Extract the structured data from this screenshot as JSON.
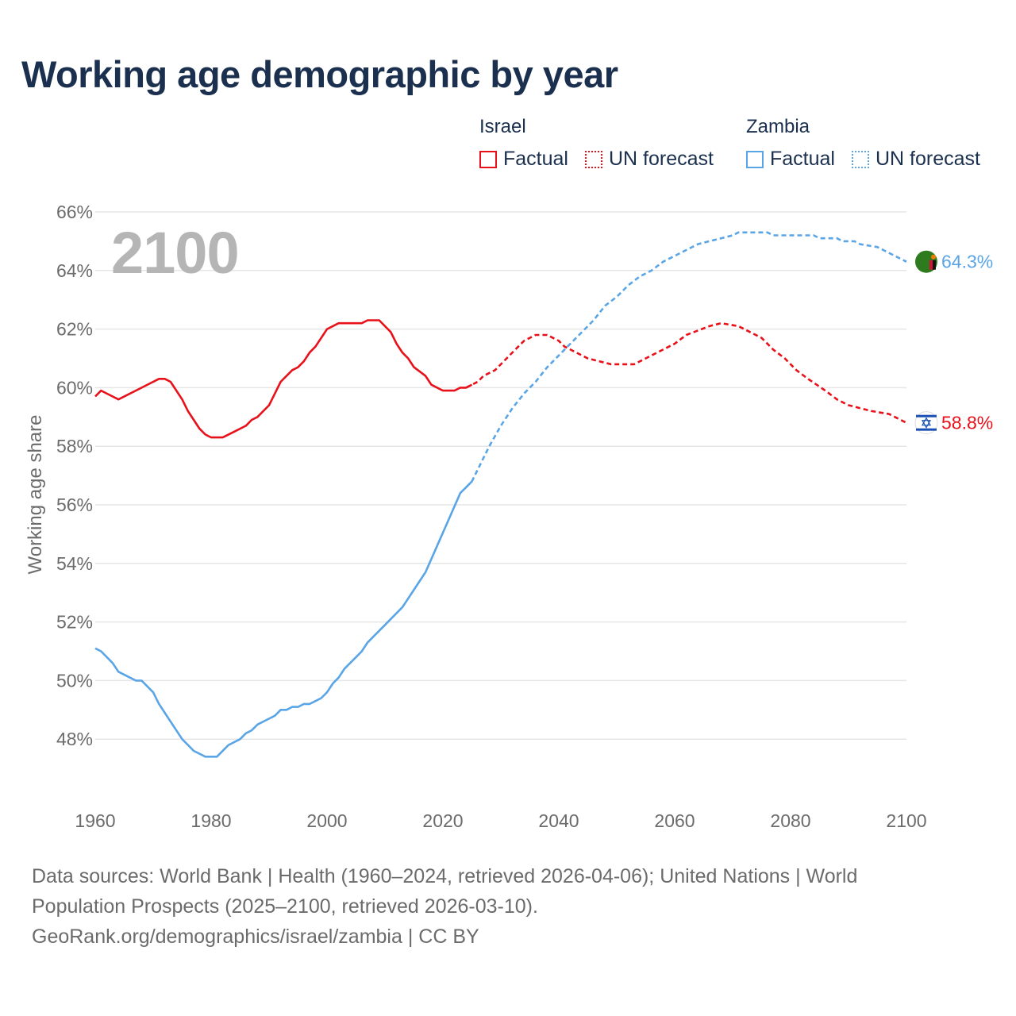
{
  "title": "Working age demographic by year",
  "big_year": "2100",
  "legend": {
    "groups": [
      {
        "name": "Israel",
        "factual": "Factual",
        "forecast": "UN forecast",
        "color": "#e8111a"
      },
      {
        "name": "Zambia",
        "factual": "Factual",
        "forecast": "UN forecast",
        "color": "#5aa5e6"
      }
    ]
  },
  "end_labels": {
    "israel": "58.8%",
    "zambia": "64.3%"
  },
  "flags": {
    "israel": "israel-flag-icon",
    "zambia": "zambia-flag-icon"
  },
  "sources": {
    "line1": "Data sources: World Bank | Health (1960–2024, retrieved 2026-04-06); United Nations | World",
    "line2": "Population Prospects (2025–2100, retrieved 2026-03-10).",
    "line3": "GeoRank.org/demographics/israel/zambia | CC BY"
  },
  "chart_data": {
    "type": "line",
    "title": "Working age demographic by year",
    "xlabel": "",
    "ylabel": "Working age share",
    "xlim": [
      1960,
      2100
    ],
    "ylim": [
      46,
      66
    ],
    "x_ticks": [
      1960,
      1980,
      2000,
      2020,
      2040,
      2060,
      2080,
      2100
    ],
    "y_ticks": [
      48,
      50,
      52,
      54,
      56,
      58,
      60,
      62,
      64,
      66
    ],
    "y_tick_labels": [
      "48%",
      "50%",
      "52%",
      "54%",
      "56%",
      "58%",
      "60%",
      "62%",
      "64%",
      "66%"
    ],
    "grid": true,
    "forecast_start": 2025,
    "series": [
      {
        "name": "Israel",
        "color": "#e8111a",
        "points": [
          [
            1960,
            59.7
          ],
          [
            1961,
            59.9
          ],
          [
            1963,
            59.7
          ],
          [
            1964,
            59.6
          ],
          [
            1967,
            59.9
          ],
          [
            1970,
            60.2
          ],
          [
            1971,
            60.3
          ],
          [
            1972,
            60.3
          ],
          [
            1973,
            60.2
          ],
          [
            1975,
            59.6
          ],
          [
            1976,
            59.2
          ],
          [
            1978,
            58.6
          ],
          [
            1979,
            58.4
          ],
          [
            1980,
            58.3
          ],
          [
            1982,
            58.3
          ],
          [
            1984,
            58.5
          ],
          [
            1986,
            58.7
          ],
          [
            1987,
            58.9
          ],
          [
            1988,
            59.0
          ],
          [
            1990,
            59.4
          ],
          [
            1991,
            59.8
          ],
          [
            1992,
            60.2
          ],
          [
            1994,
            60.6
          ],
          [
            1995,
            60.7
          ],
          [
            1996,
            60.9
          ],
          [
            1997,
            61.2
          ],
          [
            1998,
            61.4
          ],
          [
            1999,
            61.7
          ],
          [
            2000,
            62.0
          ],
          [
            2002,
            62.2
          ],
          [
            2006,
            62.2
          ],
          [
            2007,
            62.3
          ],
          [
            2009,
            62.3
          ],
          [
            2011,
            61.9
          ],
          [
            2012,
            61.5
          ],
          [
            2013,
            61.2
          ],
          [
            2014,
            61.0
          ],
          [
            2015,
            60.7
          ],
          [
            2017,
            60.4
          ],
          [
            2018,
            60.1
          ],
          [
            2020,
            59.9
          ],
          [
            2022,
            59.9
          ],
          [
            2023,
            60.0
          ],
          [
            2024,
            60.0
          ],
          [
            2025,
            60.1
          ],
          [
            2026,
            60.2
          ],
          [
            2027,
            60.4
          ],
          [
            2029,
            60.6
          ],
          [
            2031,
            61.0
          ],
          [
            2033,
            61.4
          ],
          [
            2034,
            61.6
          ],
          [
            2036,
            61.8
          ],
          [
            2038,
            61.8
          ],
          [
            2040,
            61.6
          ],
          [
            2041,
            61.4
          ],
          [
            2043,
            61.2
          ],
          [
            2045,
            61.0
          ],
          [
            2047,
            60.9
          ],
          [
            2049,
            60.8
          ],
          [
            2051,
            60.8
          ],
          [
            2053,
            60.8
          ],
          [
            2055,
            61.0
          ],
          [
            2058,
            61.3
          ],
          [
            2060,
            61.5
          ],
          [
            2062,
            61.8
          ],
          [
            2066,
            62.1
          ],
          [
            2068,
            62.2
          ],
          [
            2071,
            62.1
          ],
          [
            2073,
            61.9
          ],
          [
            2075,
            61.7
          ],
          [
            2077,
            61.3
          ],
          [
            2079,
            61.0
          ],
          [
            2081,
            60.6
          ],
          [
            2083,
            60.3
          ],
          [
            2086,
            59.9
          ],
          [
            2088,
            59.6
          ],
          [
            2090,
            59.4
          ],
          [
            2092,
            59.3
          ],
          [
            2094,
            59.2
          ],
          [
            2097,
            59.1
          ],
          [
            2099,
            58.9
          ],
          [
            2100,
            58.8
          ]
        ]
      },
      {
        "name": "Zambia",
        "color": "#5aa5e6",
        "points": [
          [
            1960,
            51.1
          ],
          [
            1961,
            51.0
          ],
          [
            1963,
            50.6
          ],
          [
            1964,
            50.3
          ],
          [
            1966,
            50.1
          ],
          [
            1967,
            50.0
          ],
          [
            1968,
            50.0
          ],
          [
            1970,
            49.6
          ],
          [
            1971,
            49.2
          ],
          [
            1973,
            48.6
          ],
          [
            1975,
            48.0
          ],
          [
            1977,
            47.6
          ],
          [
            1979,
            47.4
          ],
          [
            1981,
            47.4
          ],
          [
            1983,
            47.8
          ],
          [
            1985,
            48.0
          ],
          [
            1986,
            48.2
          ],
          [
            1987,
            48.3
          ],
          [
            1988,
            48.5
          ],
          [
            1990,
            48.7
          ],
          [
            1991,
            48.8
          ],
          [
            1992,
            49.0
          ],
          [
            1993,
            49.0
          ],
          [
            1994,
            49.1
          ],
          [
            1995,
            49.1
          ],
          [
            1996,
            49.2
          ],
          [
            1997,
            49.2
          ],
          [
            1998,
            49.3
          ],
          [
            1999,
            49.4
          ],
          [
            2000,
            49.6
          ],
          [
            2001,
            49.9
          ],
          [
            2002,
            50.1
          ],
          [
            2003,
            50.4
          ],
          [
            2005,
            50.8
          ],
          [
            2006,
            51.0
          ],
          [
            2007,
            51.3
          ],
          [
            2010,
            51.9
          ],
          [
            2013,
            52.5
          ],
          [
            2015,
            53.1
          ],
          [
            2017,
            53.7
          ],
          [
            2019,
            54.6
          ],
          [
            2021,
            55.5
          ],
          [
            2023,
            56.4
          ],
          [
            2024,
            56.6
          ],
          [
            2025,
            56.8
          ],
          [
            2026,
            57.2
          ],
          [
            2028,
            58.0
          ],
          [
            2030,
            58.7
          ],
          [
            2032,
            59.3
          ],
          [
            2034,
            59.8
          ],
          [
            2036,
            60.2
          ],
          [
            2038,
            60.7
          ],
          [
            2040,
            61.1
          ],
          [
            2042,
            61.5
          ],
          [
            2044,
            61.9
          ],
          [
            2046,
            62.3
          ],
          [
            2048,
            62.8
          ],
          [
            2050,
            63.1
          ],
          [
            2052,
            63.5
          ],
          [
            2054,
            63.8
          ],
          [
            2056,
            64.0
          ],
          [
            2058,
            64.3
          ],
          [
            2060,
            64.5
          ],
          [
            2062,
            64.7
          ],
          [
            2064,
            64.9
          ],
          [
            2066,
            65.0
          ],
          [
            2068,
            65.1
          ],
          [
            2070,
            65.2
          ],
          [
            2071,
            65.3
          ],
          [
            2076,
            65.3
          ],
          [
            2077,
            65.2
          ],
          [
            2084,
            65.2
          ],
          [
            2085,
            65.1
          ],
          [
            2088,
            65.1
          ],
          [
            2089,
            65.0
          ],
          [
            2091,
            65.0
          ],
          [
            2092,
            64.9
          ],
          [
            2095,
            64.8
          ],
          [
            2096,
            64.7
          ],
          [
            2098,
            64.5
          ],
          [
            2100,
            64.3
          ]
        ]
      }
    ]
  }
}
